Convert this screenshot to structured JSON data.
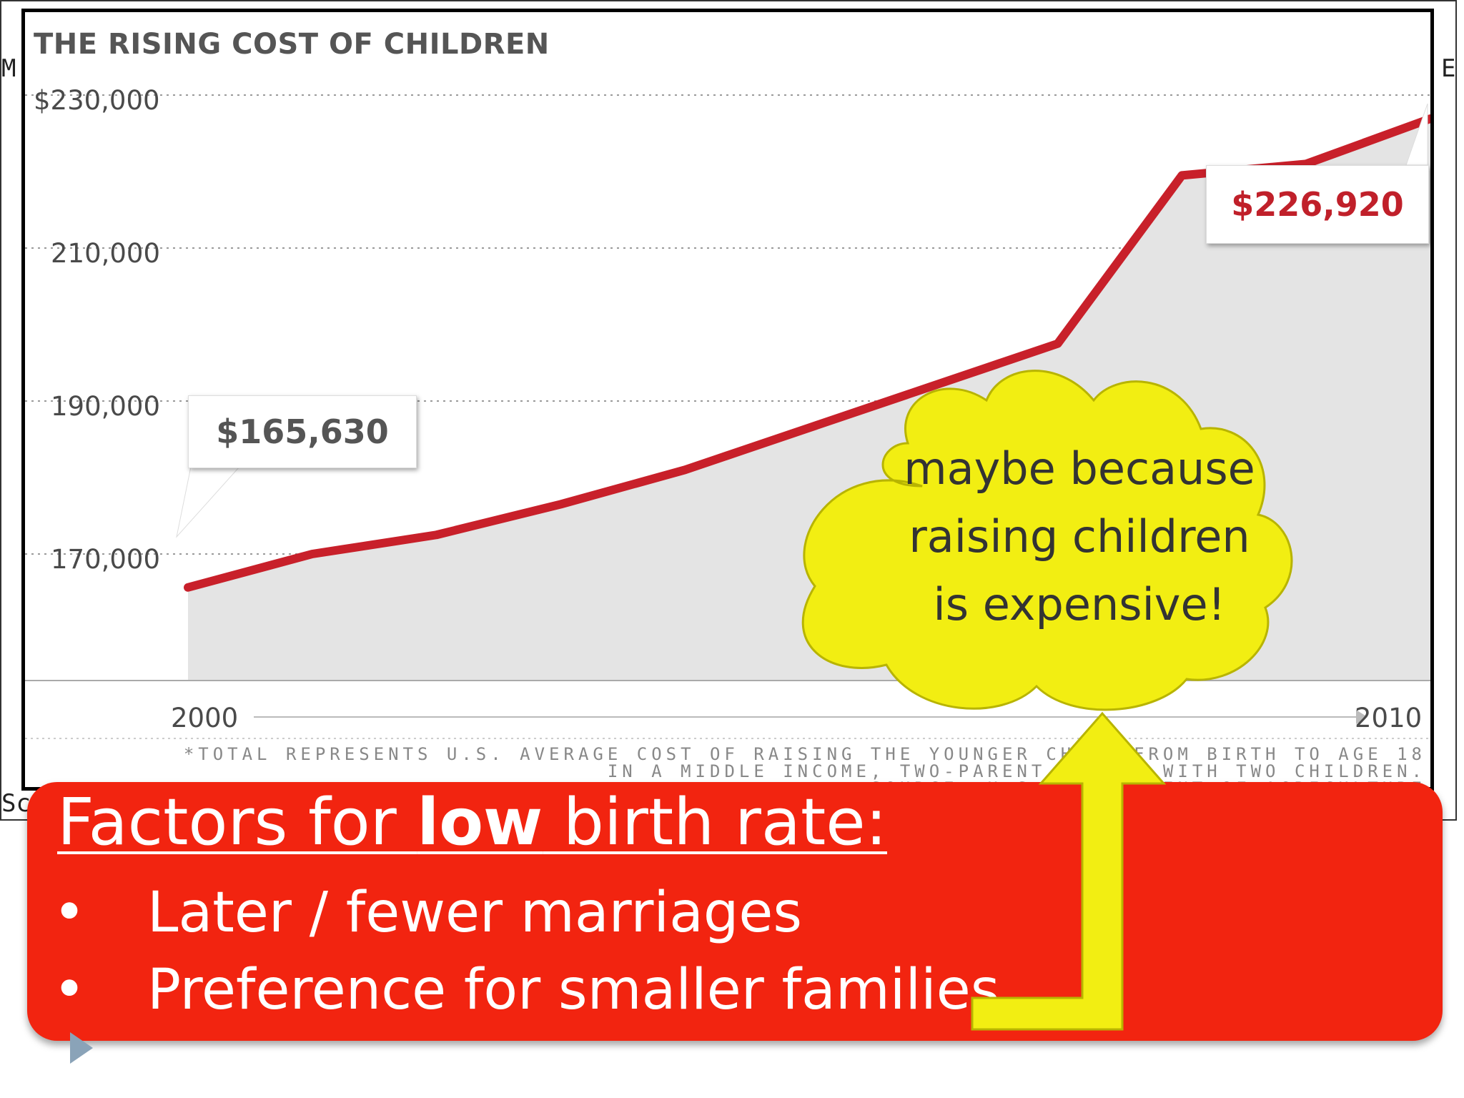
{
  "slide": {
    "edge_fragments": {
      "left_top": "M",
      "right_top": "E",
      "left_bottom": "Sc"
    }
  },
  "chart_data": {
    "type": "area",
    "title": "THE RISING COST OF CHILDREN",
    "y_tick_labels": [
      "$230,000",
      "210,000",
      "190,000",
      "170,000"
    ],
    "y_ticks": [
      230000,
      210000,
      190000,
      170000
    ],
    "ylim": [
      152000,
      230000
    ],
    "xlim": [
      2000,
      2010
    ],
    "x_tick_labels": [
      "2000",
      "2010"
    ],
    "grid": true,
    "series": [
      {
        "x": [
          2000,
          2001,
          2002,
          2003,
          2004,
          2005,
          2006,
          2007,
          2008,
          2009,
          2010
        ],
        "values": [
          165630,
          170000,
          172500,
          176500,
          181000,
          186500,
          192000,
          197500,
          219500,
          221000,
          226920
        ],
        "color": "#c8202a",
        "fill": "#e4e4e4"
      }
    ],
    "annotations": {
      "start_value": "$165,630",
      "end_value": "$226,920"
    },
    "footnote": [
      "*TOTAL REPRESENTS U.S. AVERAGE COST OF RAISING THE YOUNGER CHILD FROM BIRTH TO AGE 18",
      "IN A MIDDLE INCOME, TWO-PARENT FAMILY WITH TWO CHILDREN.",
      "SOURCE: U.S. DEPARTMENT OF AGRICULTURE"
    ]
  },
  "cloud": {
    "lines": [
      "maybe because",
      "raising children",
      "is expensive!"
    ],
    "fill": "#f2ee12"
  },
  "factors": {
    "heading_prefix": "Factors for ",
    "heading_bold": "low",
    "heading_suffix": " birth rate:",
    "bullet_symbol": "•",
    "bullets": [
      "Later / fewer marriages",
      "Preference for smaller families"
    ],
    "box_color": "#f22410"
  },
  "arrow": {
    "color": "#f2ee12"
  }
}
